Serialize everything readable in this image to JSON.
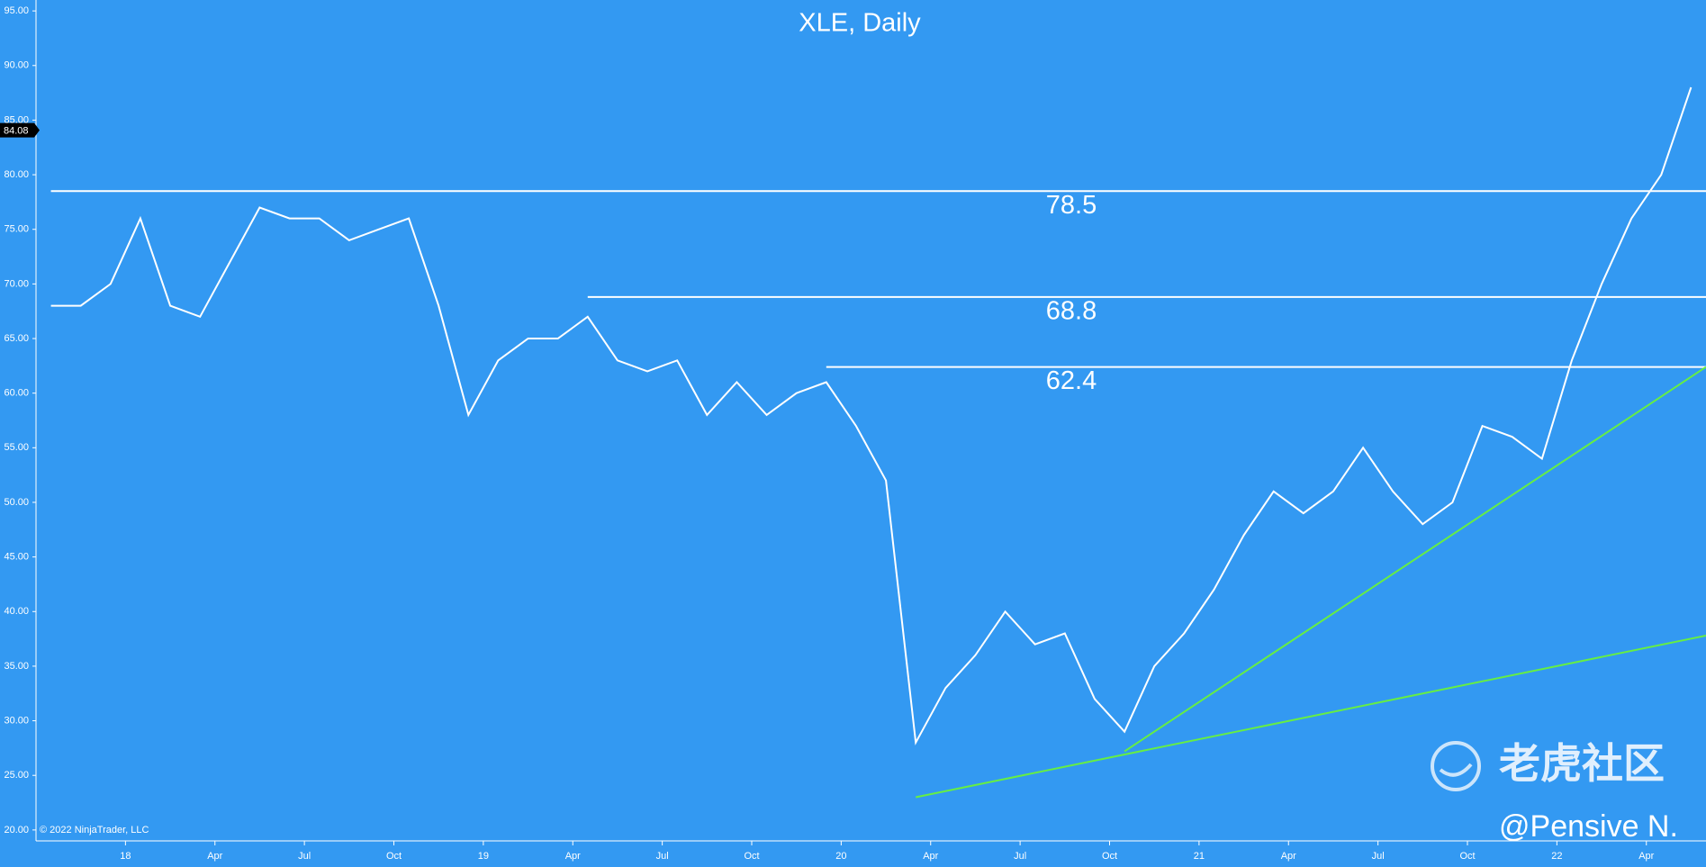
{
  "chart_data": {
    "type": "line",
    "title": "XLE, Daily",
    "x": [
      "2017-10",
      "2017-11",
      "2017-12",
      "2018-01",
      "2018-02",
      "2018-03",
      "2018-04",
      "2018-05",
      "2018-06",
      "2018-07",
      "2018-08",
      "2018-09",
      "2018-10",
      "2018-11",
      "2018-12",
      "2019-01",
      "2019-02",
      "2019-03",
      "2019-04",
      "2019-05",
      "2019-06",
      "2019-07",
      "2019-08",
      "2019-09",
      "2019-10",
      "2019-11",
      "2019-12",
      "2020-01",
      "2020-02",
      "2020-03",
      "2020-04",
      "2020-05",
      "2020-06",
      "2020-07",
      "2020-08",
      "2020-09",
      "2020-10",
      "2020-11",
      "2020-12",
      "2021-01",
      "2021-02",
      "2021-03",
      "2021-04",
      "2021-05",
      "2021-06",
      "2021-07",
      "2021-08",
      "2021-09",
      "2021-10",
      "2021-11",
      "2021-12",
      "2022-01",
      "2022-02",
      "2022-03",
      "2022-04",
      "2022-05"
    ],
    "series": [
      {
        "color": "#ffffff",
        "values": [
          68,
          68,
          70,
          76,
          68,
          67,
          72,
          77,
          76,
          76,
          74,
          75,
          76,
          68,
          58,
          63,
          65,
          65,
          67,
          63,
          62,
          63,
          58,
          61,
          58,
          60,
          61,
          57,
          52,
          28,
          33,
          36,
          40,
          37,
          38,
          32,
          29,
          35,
          38,
          42,
          47,
          51,
          49,
          51,
          55,
          51,
          48,
          50,
          57,
          56,
          54,
          63,
          70,
          76,
          80,
          88
        ]
      }
    ],
    "xlim": [
      "2017-10",
      "2022-06"
    ],
    "xticks": [
      {
        "value": "2018-01",
        "label": "18"
      },
      {
        "value": "2018-04",
        "label": "Apr"
      },
      {
        "value": "2018-07",
        "label": "Jul"
      },
      {
        "value": "2018-10",
        "label": "Oct"
      },
      {
        "value": "2019-01",
        "label": "19"
      },
      {
        "value": "2019-04",
        "label": "Apr"
      },
      {
        "value": "2019-07",
        "label": "Jul"
      },
      {
        "value": "2019-10",
        "label": "Oct"
      },
      {
        "value": "2020-01",
        "label": "20"
      },
      {
        "value": "2020-04",
        "label": "Apr"
      },
      {
        "value": "2020-07",
        "label": "Jul"
      },
      {
        "value": "2020-10",
        "label": "Oct"
      },
      {
        "value": "2021-01",
        "label": "21"
      },
      {
        "value": "2021-04",
        "label": "Apr"
      },
      {
        "value": "2021-07",
        "label": "Jul"
      },
      {
        "value": "2021-10",
        "label": "Oct"
      },
      {
        "value": "2022-01",
        "label": "22"
      },
      {
        "value": "2022-04",
        "label": "Apr"
      }
    ],
    "ylim": [
      19,
      96
    ],
    "yticks": [
      {
        "value": 20,
        "label": "20.00"
      },
      {
        "value": 25,
        "label": "25.00"
      },
      {
        "value": 30,
        "label": "30.00"
      },
      {
        "value": 35,
        "label": "35.00"
      },
      {
        "value": 40,
        "label": "40.00"
      },
      {
        "value": 45,
        "label": "45.00"
      },
      {
        "value": 50,
        "label": "50.00"
      },
      {
        "value": 55,
        "label": "55.00"
      },
      {
        "value": 60,
        "label": "60.00"
      },
      {
        "value": 65,
        "label": "65.00"
      },
      {
        "value": 70,
        "label": "70.00"
      },
      {
        "value": 75,
        "label": "75.00"
      },
      {
        "value": 80,
        "label": "80.00"
      },
      {
        "value": 85,
        "label": "85.00"
      },
      {
        "value": 90,
        "label": "90.00"
      },
      {
        "value": 95,
        "label": "95.00"
      }
    ],
    "last_price": {
      "value": 84.08,
      "label": "84.08"
    },
    "levels": [
      {
        "value": 78.5,
        "start": "2017-10"
      },
      {
        "value": 68.8,
        "start": "2019-04"
      },
      {
        "value": 62.4,
        "start": "2019-12"
      }
    ],
    "trendlines": [
      {
        "color": "#66ee44",
        "x": [
          "2020-03",
          "2022-06"
        ],
        "values": [
          23,
          37.8
        ]
      },
      {
        "color": "#66ee44",
        "x": [
          "2020-10",
          "2022-06"
        ],
        "values": [
          27.2,
          62.4
        ]
      }
    ],
    "copyright": "© 2022 NinjaTrader, LLC",
    "watermark": "老虎社区",
    "author": "@Pensive N."
  }
}
